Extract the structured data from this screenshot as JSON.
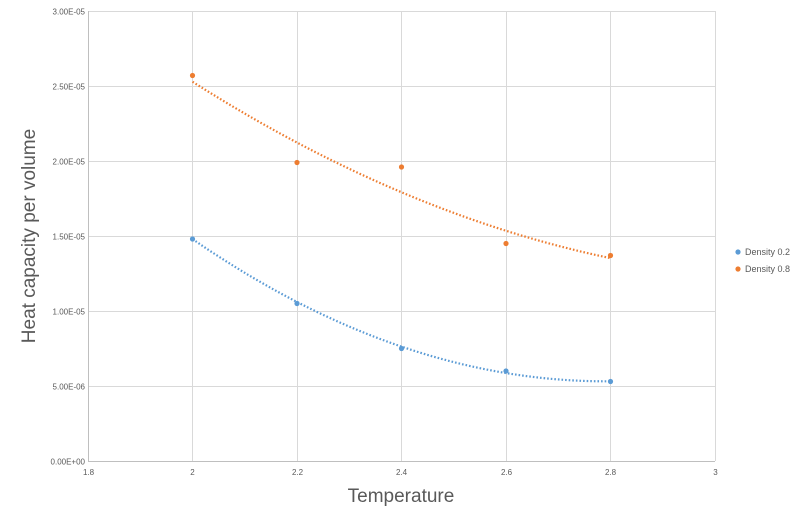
{
  "chart_data": {
    "type": "scatter",
    "title": "",
    "xlabel": "Temperature",
    "ylabel": "Heat capacity per volume",
    "xlim": [
      1.8,
      3
    ],
    "ylim": [
      0,
      3e-05
    ],
    "x_ticks": [
      1.8,
      2,
      2.2,
      2.4,
      2.6,
      2.8,
      3
    ],
    "x_tick_labels": [
      "1.8",
      "2",
      "2.2",
      "2.4",
      "2.6",
      "2.8",
      "3"
    ],
    "y_ticks": [
      0,
      5e-06,
      1e-05,
      1.5e-05,
      2e-05,
      2.5e-05,
      3e-05
    ],
    "y_tick_labels": [
      "0.00E+00",
      "5.00E-06",
      "1.00E-05",
      "1.50E-05",
      "2.00E-05",
      "2.50E-05",
      "3.00E-05"
    ],
    "grid": true,
    "legend_position": "right",
    "trendline": "polynomial (dotted)",
    "series": [
      {
        "name": "Density 0.2",
        "color": "#5b9bd5",
        "x": [
          2,
          2.2,
          2.4,
          2.6,
          2.8
        ],
        "y": [
          1.48e-05,
          1.05e-05,
          7.5e-06,
          6e-06,
          5.3e-06
        ],
        "trend": [
          1.48e-05,
          1.06e-05,
          7.6e-06,
          5.9e-06,
          5.3e-06
        ]
      },
      {
        "name": "Density 0.8",
        "color": "#ed7d31",
        "x": [
          2,
          2.2,
          2.4,
          2.6,
          2.8
        ],
        "y": [
          2.57e-05,
          1.99e-05,
          1.96e-05,
          1.45e-05,
          1.37e-05
        ],
        "trend": [
          2.53e-05,
          2.12e-05,
          1.79e-05,
          1.54e-05,
          1.35e-05
        ]
      }
    ]
  }
}
